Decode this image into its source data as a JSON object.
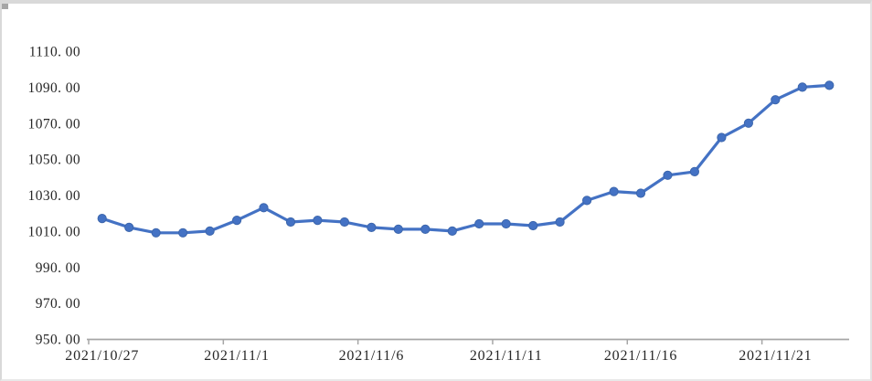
{
  "chart_data": {
    "type": "line",
    "title": "",
    "xlabel": "",
    "ylabel": "",
    "legend_position": "none",
    "grid": false,
    "x": [
      "2021/10/27",
      "2021/10/28",
      "2021/10/29",
      "2021/10/30",
      "2021/10/31",
      "2021/11/1",
      "2021/11/2",
      "2021/11/3",
      "2021/11/4",
      "2021/11/5",
      "2021/11/6",
      "2021/11/7",
      "2021/11/8",
      "2021/11/9",
      "2021/11/10",
      "2021/11/11",
      "2021/11/12",
      "2021/11/13",
      "2021/11/14",
      "2021/11/15",
      "2021/11/16",
      "2021/11/17",
      "2021/11/18",
      "2021/11/19",
      "2021/11/20",
      "2021/11/21",
      "2021/11/22",
      "2021/11/23"
    ],
    "series": [
      {
        "name": "",
        "values": [
          1017,
          1012,
          1009,
          1009,
          1010,
          1016,
          1023,
          1015,
          1016,
          1015,
          1012,
          1011,
          1011,
          1010,
          1014,
          1014,
          1013,
          1015,
          1027,
          1032,
          1031,
          1041,
          1043,
          1062,
          1070,
          1083,
          1090,
          1091
        ]
      }
    ],
    "ylim": [
      950,
      1110
    ],
    "y_tick_step": 20,
    "y_tick_labels": [
      "1110. 00",
      "1090. 00",
      "1070. 00",
      "1050. 00",
      "1030. 00",
      "1010. 00",
      "990. 00",
      "970. 00",
      "950. 00"
    ],
    "x_tick_labels": [
      "2021/10/27",
      "2021/11/1",
      "2021/11/6",
      "2021/11/11",
      "2021/11/16",
      "2021/11/21"
    ],
    "x_tick_indices": [
      0,
      5,
      10,
      15,
      20,
      25
    ],
    "line_color": "#4472C4",
    "marker_edge_color": "#3C66AC",
    "marker_shape": "circle",
    "axis_color": "#A6A6A6",
    "label_color": "#262626"
  }
}
